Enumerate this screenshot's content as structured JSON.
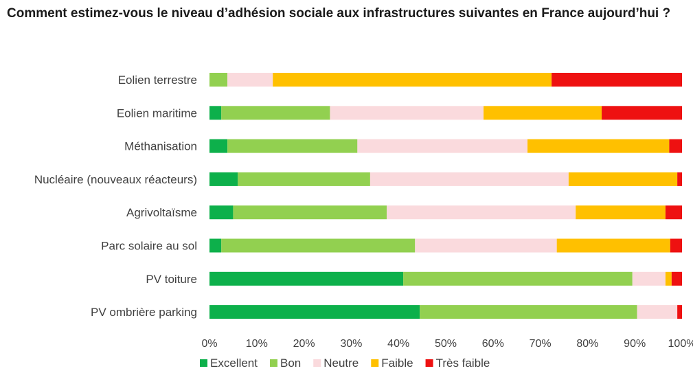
{
  "chart_data": {
    "type": "bar",
    "orientation": "horizontal",
    "stacked": "percent",
    "title": "Comment estimez-vous le niveau d’adhésion sociale aux infrastructures suivantes en France aujourd’hui ?",
    "categories": [
      "Eolien terrestre",
      "Eolien maritime",
      "Méthanisation",
      "Nucléaire (nouveaux réacteurs)",
      "Agrivoltaïsme",
      "Parc solaire au sol",
      "PV toiture",
      "PV ombrière parking"
    ],
    "series": [
      {
        "name": "Excellent",
        "color": "#0db04b",
        "values": [
          0,
          2.5,
          3.8,
          6,
          5,
          2.5,
          41,
          44.5
        ]
      },
      {
        "name": "Bon",
        "color": "#92d050",
        "values": [
          3.8,
          23,
          27.5,
          28,
          32.5,
          41,
          48.5,
          46
        ]
      },
      {
        "name": "Neutre",
        "color": "#fadadd",
        "values": [
          9.6,
          32.5,
          36,
          42,
          40,
          30,
          7,
          8.5
        ]
      },
      {
        "name": "Faible",
        "color": "#ffc000",
        "values": [
          59,
          25,
          30,
          23,
          19,
          24,
          1.3,
          0
        ]
      },
      {
        "name": "Très faible",
        "color": "#ee1111",
        "values": [
          27.6,
          17,
          2.7,
          1,
          3.5,
          2.5,
          2.2,
          1
        ]
      }
    ],
    "xlim": [
      0,
      100
    ],
    "x_ticks": [
      "0%",
      "10%",
      "20%",
      "30%",
      "40%",
      "50%",
      "60%",
      "70%",
      "80%",
      "90%",
      "100%"
    ],
    "grid": false,
    "legend_position": "bottom"
  }
}
